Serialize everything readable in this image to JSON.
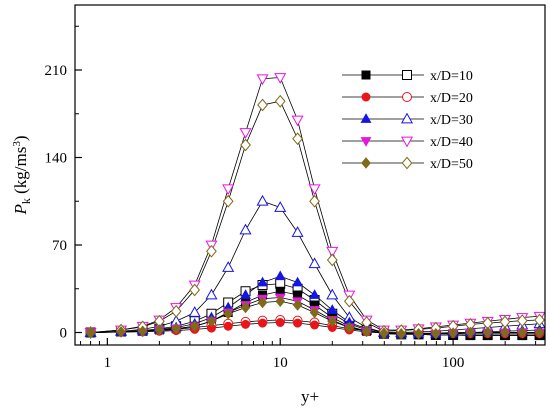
{
  "chart_data": {
    "type": "line",
    "title": "",
    "xlabel": "y+",
    "ylabel_main": "P",
    "ylabel_sub": "k",
    "ylabel_unit": " (kg/ms",
    "ylabel_unit_sup": "3",
    "ylabel_unit_end": ")",
    "x_scale": "log",
    "xlim": [
      0.65,
      340
    ],
    "ylim": [
      -10,
      262
    ],
    "x_ticks": [
      {
        "value": 1,
        "label": "1"
      },
      {
        "value": 10,
        "label": "10"
      },
      {
        "value": 100,
        "label": "100"
      }
    ],
    "y_ticks": [
      {
        "value": 0,
        "label": "0"
      },
      {
        "value": 70,
        "label": "70"
      },
      {
        "value": 140,
        "label": "140"
      },
      {
        "value": 210,
        "label": "210"
      }
    ],
    "grid": false,
    "legend_position": "top-right",
    "x": [
      0.8,
      1.2,
      1.6,
      2.0,
      2.5,
      3.2,
      4.0,
      5.0,
      6.3,
      7.9,
      10.0,
      12.6,
      15.8,
      20.0,
      25.1,
      31.6,
      39.8,
      50.1,
      63.1,
      79.4,
      100,
      125.9,
      158.5,
      199.5,
      251.2,
      316.2
    ],
    "series": [
      {
        "name": "x/D=10",
        "color": "#000000",
        "marker": "square",
        "dns": [
          0,
          0.5,
          1,
          2,
          3,
          5,
          9,
          16,
          24,
          30,
          33,
          30,
          22,
          12,
          5,
          1,
          -0.5,
          -1,
          -1.5,
          -2,
          -2,
          -2.5,
          -2.5,
          -2.5,
          -2.5,
          -2.5
        ],
        "model": [
          0,
          0.8,
          1.5,
          3,
          5,
          9,
          15,
          24,
          33,
          38,
          39,
          35,
          26,
          15,
          7,
          2,
          -1,
          -1.5,
          -1.5,
          -2,
          -2,
          -2,
          -2,
          -2,
          -2,
          -2
        ]
      },
      {
        "name": "x/D=20",
        "color": "#e8151b",
        "marker": "circle",
        "dns": [
          0,
          0.3,
          0.6,
          1,
          1.5,
          2.5,
          3.5,
          5,
          6.5,
          7.5,
          8,
          7.5,
          6,
          4,
          2,
          0.5,
          -0.5,
          -1,
          -1,
          -1,
          -1,
          -1,
          -1,
          -1,
          -1,
          -1
        ],
        "model": [
          0,
          0.4,
          0.8,
          1.5,
          2.5,
          4,
          5.5,
          7,
          8.5,
          9.5,
          10,
          9.5,
          8,
          5.5,
          3,
          1.5,
          0,
          -0.5,
          -0.5,
          -0.5,
          0,
          0,
          0,
          0,
          0,
          0
        ]
      },
      {
        "name": "x/D=30",
        "color": "#1515e6",
        "marker": "triangle",
        "dns": [
          0,
          0.5,
          1,
          2.5,
          4,
          7,
          12,
          20,
          30,
          40,
          45,
          40,
          30,
          18,
          8,
          3,
          0,
          -1,
          -1,
          -1,
          -0.5,
          0,
          0.5,
          1,
          1.5,
          2
        ],
        "model": [
          0,
          1,
          2.5,
          5,
          9,
          16,
          30,
          52,
          82,
          105,
          100,
          80,
          55,
          30,
          12,
          4,
          0,
          0,
          0.5,
          1,
          2,
          3,
          4,
          5,
          6,
          7
        ]
      },
      {
        "name": "x/D=40",
        "color": "#e815e0",
        "marker": "triangle-down",
        "dns": [
          0,
          0.5,
          1,
          2,
          3,
          5,
          9,
          16,
          22,
          27,
          28,
          25,
          18,
          10,
          4,
          1,
          -0.5,
          -1,
          -1,
          -1,
          -0.5,
          0,
          0,
          0,
          0,
          0
        ],
        "model": [
          0,
          2,
          5,
          10,
          20,
          38,
          70,
          115,
          160,
          203,
          204,
          170,
          115,
          65,
          30,
          10,
          2,
          2,
          3,
          4.5,
          6,
          7.5,
          9,
          10.5,
          12,
          13
        ]
      },
      {
        "name": "x/D=50",
        "color": "#7f6b19",
        "marker": "diamond",
        "dns": [
          0,
          0.5,
          1,
          2,
          3,
          5,
          9,
          15,
          20,
          24,
          25,
          22,
          16,
          9,
          4,
          1,
          -0.5,
          -1,
          -1,
          -1,
          -0.5,
          0,
          0,
          0,
          0,
          0
        ],
        "model": [
          0,
          2,
          4.5,
          9,
          17,
          34,
          65,
          105,
          150,
          182,
          185,
          155,
          105,
          58,
          25,
          8,
          1,
          1.5,
          2.5,
          3.5,
          5,
          6.5,
          7.5,
          8.5,
          9.5,
          10
        ]
      }
    ]
  }
}
